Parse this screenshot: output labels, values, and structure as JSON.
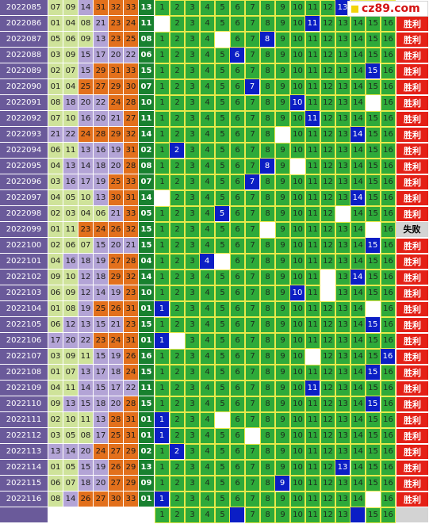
{
  "logo": {
    "text": "cz89.com"
  },
  "chart_data": {
    "type": "table",
    "columns": [
      "issue",
      "draw_numbers",
      "blue_ball",
      "pick_1_to_16",
      "result"
    ],
    "result_labels": {
      "win": "胜利",
      "lose": "失败"
    },
    "colors": {
      "issue": "#6a5a9a",
      "low_zone": "#cfe39a",
      "mid_zone": "#b3a4d6",
      "high_zone": "#e2701c",
      "blue_ball_cell": "#18812f",
      "grid": "#2eaa3a",
      "hit": "#0b1ec5",
      "win": "#e42016",
      "lose": "#d3d3d3"
    },
    "rows": [
      {
        "issue": "2022085",
        "draw": [
          "07",
          "09",
          "14",
          "31",
          "32",
          "33"
        ],
        "blue": "13",
        "hits": [
          13
        ],
        "misses": [],
        "result": "win"
      },
      {
        "issue": "2022086",
        "draw": [
          "01",
          "04",
          "08",
          "21",
          "23",
          "24"
        ],
        "blue": "11",
        "hits": [
          11
        ],
        "misses": [
          1
        ],
        "result": "win"
      },
      {
        "issue": "2022087",
        "draw": [
          "05",
          "06",
          "09",
          "13",
          "23",
          "25"
        ],
        "blue": "08",
        "hits": [
          8
        ],
        "misses": [
          5
        ],
        "result": "win"
      },
      {
        "issue": "2022088",
        "draw": [
          "03",
          "09",
          "15",
          "17",
          "20",
          "22"
        ],
        "blue": "06",
        "hits": [
          6
        ],
        "misses": [],
        "result": "win"
      },
      {
        "issue": "2022089",
        "draw": [
          "02",
          "07",
          "15",
          "29",
          "31",
          "33"
        ],
        "blue": "15",
        "hits": [
          15
        ],
        "misses": [],
        "result": "win"
      },
      {
        "issue": "2022090",
        "draw": [
          "01",
          "04",
          "25",
          "27",
          "29",
          "30"
        ],
        "blue": "07",
        "hits": [
          7
        ],
        "misses": [],
        "result": "win"
      },
      {
        "issue": "2022091",
        "draw": [
          "08",
          "18",
          "20",
          "22",
          "24",
          "28"
        ],
        "blue": "10",
        "hits": [
          10
        ],
        "misses": [
          15
        ],
        "result": "win"
      },
      {
        "issue": "2022092",
        "draw": [
          "07",
          "10",
          "16",
          "20",
          "21",
          "27"
        ],
        "blue": "11",
        "hits": [
          11
        ],
        "misses": [],
        "result": "win"
      },
      {
        "issue": "2022093",
        "draw": [
          "21",
          "22",
          "24",
          "28",
          "29",
          "32"
        ],
        "blue": "14",
        "hits": [
          14
        ],
        "misses": [
          9
        ],
        "result": "win"
      },
      {
        "issue": "2022094",
        "draw": [
          "06",
          "11",
          "13",
          "16",
          "19",
          "31"
        ],
        "blue": "02",
        "hits": [
          2
        ],
        "misses": [],
        "result": "win"
      },
      {
        "issue": "2022095",
        "draw": [
          "04",
          "13",
          "14",
          "18",
          "20",
          "28"
        ],
        "blue": "08",
        "hits": [
          8
        ],
        "misses": [
          10
        ],
        "result": "win"
      },
      {
        "issue": "2022096",
        "draw": [
          "03",
          "16",
          "17",
          "19",
          "25",
          "33"
        ],
        "blue": "07",
        "hits": [
          7
        ],
        "misses": [],
        "result": "win"
      },
      {
        "issue": "2022097",
        "draw": [
          "04",
          "05",
          "10",
          "13",
          "30",
          "31"
        ],
        "blue": "14",
        "hits": [
          14
        ],
        "misses": [
          1
        ],
        "result": "win"
      },
      {
        "issue": "2022098",
        "draw": [
          "02",
          "03",
          "04",
          "06",
          "21",
          "33"
        ],
        "blue": "05",
        "hits": [
          5
        ],
        "misses": [
          13
        ],
        "result": "win"
      },
      {
        "issue": "2022099",
        "draw": [
          "01",
          "11",
          "23",
          "24",
          "26",
          "32"
        ],
        "blue": "15",
        "hits": [],
        "misses": [
          8,
          15
        ],
        "result": "lose"
      },
      {
        "issue": "2022100",
        "draw": [
          "02",
          "06",
          "07",
          "15",
          "20",
          "21"
        ],
        "blue": "15",
        "hits": [
          15
        ],
        "misses": [],
        "result": "win"
      },
      {
        "issue": "2022101",
        "draw": [
          "04",
          "16",
          "18",
          "19",
          "27",
          "28"
        ],
        "blue": "04",
        "hits": [
          4
        ],
        "misses": [
          5
        ],
        "result": "win"
      },
      {
        "issue": "2022102",
        "draw": [
          "09",
          "10",
          "12",
          "18",
          "29",
          "32"
        ],
        "blue": "14",
        "hits": [
          14
        ],
        "misses": [
          12
        ],
        "result": "win"
      },
      {
        "issue": "2022103",
        "draw": [
          "06",
          "09",
          "12",
          "14",
          "19",
          "23"
        ],
        "blue": "10",
        "hits": [
          10
        ],
        "misses": [
          12
        ],
        "result": "win"
      },
      {
        "issue": "2022104",
        "draw": [
          "01",
          "08",
          "19",
          "25",
          "26",
          "31"
        ],
        "blue": "01",
        "hits": [
          1
        ],
        "misses": [
          15
        ],
        "result": "win"
      },
      {
        "issue": "2022105",
        "draw": [
          "06",
          "12",
          "13",
          "15",
          "21",
          "23"
        ],
        "blue": "15",
        "hits": [
          15
        ],
        "misses": [],
        "result": "win"
      },
      {
        "issue": "2022106",
        "draw": [
          "17",
          "20",
          "22",
          "23",
          "24",
          "31"
        ],
        "blue": "01",
        "hits": [
          1
        ],
        "misses": [
          2
        ],
        "result": "win"
      },
      {
        "issue": "2022107",
        "draw": [
          "03",
          "09",
          "11",
          "15",
          "19",
          "26"
        ],
        "blue": "16",
        "hits": [
          16
        ],
        "misses": [
          11
        ],
        "result": "win"
      },
      {
        "issue": "2022108",
        "draw": [
          "01",
          "07",
          "13",
          "17",
          "18",
          "24"
        ],
        "blue": "15",
        "hits": [
          15
        ],
        "misses": [],
        "result": "win"
      },
      {
        "issue": "2022109",
        "draw": [
          "04",
          "11",
          "14",
          "15",
          "17",
          "22"
        ],
        "blue": "11",
        "hits": [
          11
        ],
        "misses": [],
        "result": "win"
      },
      {
        "issue": "2022110",
        "draw": [
          "09",
          "13",
          "15",
          "18",
          "20",
          "28"
        ],
        "blue": "15",
        "hits": [
          15
        ],
        "misses": [],
        "result": "win"
      },
      {
        "issue": "2022111",
        "draw": [
          "02",
          "10",
          "11",
          "13",
          "28",
          "31"
        ],
        "blue": "01",
        "hits": [
          1
        ],
        "misses": [
          5
        ],
        "result": "win"
      },
      {
        "issue": "2022112",
        "draw": [
          "03",
          "05",
          "08",
          "17",
          "25",
          "31"
        ],
        "blue": "01",
        "hits": [
          1
        ],
        "misses": [
          7
        ],
        "result": "win"
      },
      {
        "issue": "2022113",
        "draw": [
          "13",
          "14",
          "20",
          "24",
          "27",
          "29"
        ],
        "blue": "02",
        "hits": [
          2
        ],
        "misses": [],
        "result": "win"
      },
      {
        "issue": "2022114",
        "draw": [
          "01",
          "05",
          "15",
          "19",
          "26",
          "29"
        ],
        "blue": "13",
        "hits": [
          13
        ],
        "misses": [],
        "result": "win"
      },
      {
        "issue": "2022115",
        "draw": [
          "06",
          "07",
          "18",
          "20",
          "27",
          "29"
        ],
        "blue": "09",
        "hits": [
          9
        ],
        "misses": [],
        "result": "win"
      },
      {
        "issue": "2022116",
        "draw": [
          "08",
          "14",
          "26",
          "27",
          "30",
          "33"
        ],
        "blue": "01",
        "hits": [
          1
        ],
        "misses": [
          15
        ],
        "result": "win"
      }
    ],
    "forecast": {
      "issue": "",
      "misses": [
        6,
        14
      ]
    }
  }
}
